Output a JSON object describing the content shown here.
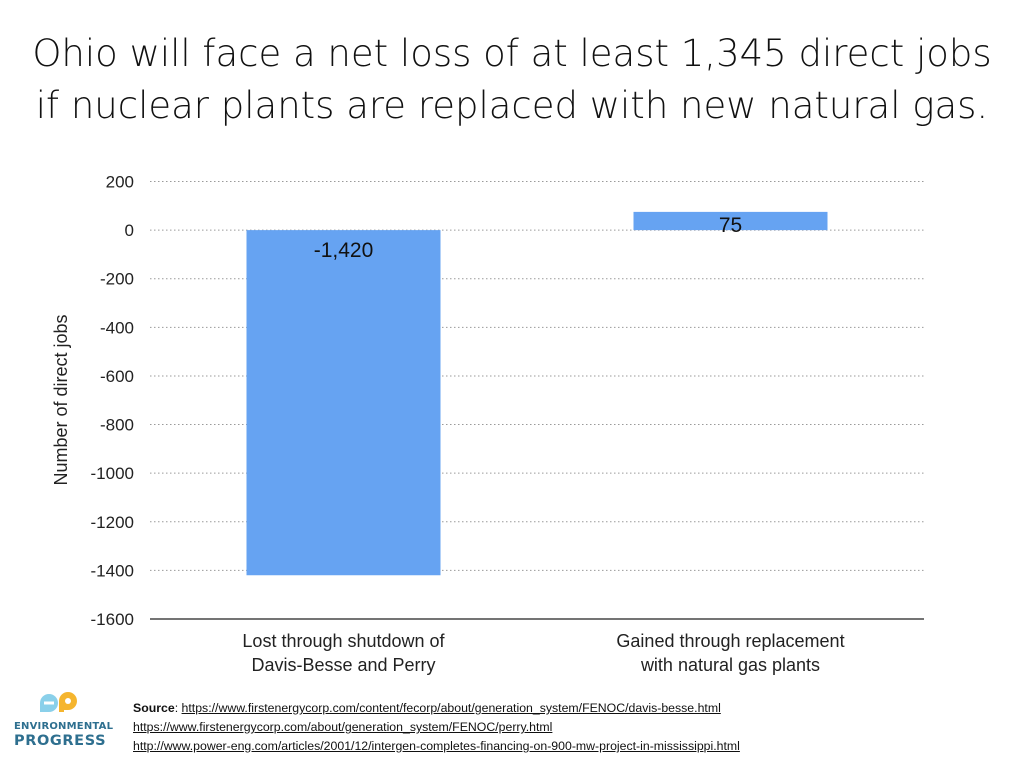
{
  "title": {
    "line1": "Ohio will face a net loss of at least 1,345 direct jobs",
    "line2": "if nuclear plants are replaced with new natural gas."
  },
  "chart_data": {
    "type": "bar",
    "title": "Ohio will face a net loss of at least 1,345 direct jobs if nuclear plants are replaced with new natural gas.",
    "categories": [
      [
        "Lost through shutdown of",
        "Davis-Besse and Perry"
      ],
      [
        "Gained through replacement",
        "with natural gas plants"
      ]
    ],
    "values": [
      -1420,
      75
    ],
    "data_labels": [
      "-1,420",
      "75"
    ],
    "xlabel": "",
    "ylabel": "Number of direct jobs",
    "ylim": [
      -1600,
      200
    ],
    "yticks": [
      200,
      0,
      -200,
      -400,
      -600,
      -800,
      -1000,
      -1200,
      -1400,
      -1600
    ],
    "ytick_labels": [
      "200",
      "0",
      "-200",
      "-400",
      "-600",
      "-800",
      "-1000",
      "-1200",
      "-1400",
      "-1600"
    ],
    "grid": "horizontal dotted",
    "bar_color": "#66a3f2"
  },
  "source": {
    "label": "Source",
    "links": [
      "https://www.firstenergycorp.com/content/fecorp/about/generation_system/FENOC/davis-besse.html",
      "https://www.firstenergycorp.com/about/generation_system/FENOC/perry.html",
      "http://www.power-eng.com/articles/2001/12/intergen-completes-financing-on-900-mw-project-in-mississippi.html"
    ]
  },
  "logo": {
    "word1": "ENVIRONMENTAL",
    "word2": "PROGRESS",
    "colors": [
      "#8ad0ea",
      "#f5b52e",
      "#2e6f8f"
    ]
  }
}
